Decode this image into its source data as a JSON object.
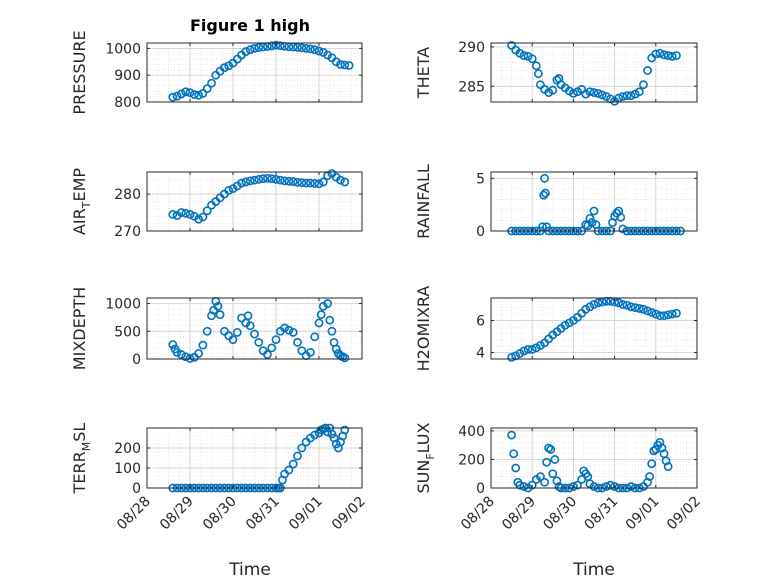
{
  "figure": {
    "title": "Figure 1 high",
    "xlabel": "Time",
    "xticks": [
      "08/28",
      "08/29",
      "08/30",
      "08/31",
      "09/01",
      "09/02"
    ],
    "marker_color": "#0072BD"
  },
  "chart_data": [
    {
      "type": "scatter",
      "ylabel": "PRESSURE",
      "ylim": [
        800,
        1020
      ],
      "yticks": [
        800,
        900,
        1000
      ],
      "grid": true,
      "x": [
        0.6,
        0.7,
        0.8,
        0.9,
        1.0,
        1.1,
        1.2,
        1.3,
        1.4,
        1.5,
        1.6,
        1.7,
        1.8,
        1.9,
        2.0,
        2.1,
        2.2,
        2.3,
        2.4,
        2.5,
        2.6,
        2.7,
        2.8,
        2.9,
        3.0,
        3.1,
        3.2,
        3.3,
        3.4,
        3.5,
        3.6,
        3.7,
        3.8,
        3.9,
        4.0,
        4.1,
        4.2,
        4.3,
        4.4,
        4.5,
        4.6,
        4.7
      ],
      "y": [
        818,
        822,
        830,
        838,
        835,
        828,
        825,
        832,
        850,
        870,
        900,
        915,
        928,
        935,
        945,
        960,
        975,
        988,
        995,
        1000,
        1003,
        1005,
        1007,
        1009,
        1012,
        1010,
        1008,
        1006,
        1005,
        1004,
        1002,
        1000,
        998,
        995,
        990,
        985,
        975,
        965,
        950,
        940,
        938,
        936
      ]
    },
    {
      "type": "scatter",
      "ylabel": "THETA",
      "ylim": [
        283,
        290.5
      ],
      "yticks": [
        285,
        290
      ],
      "grid": true,
      "x": [
        0.5,
        0.6,
        0.7,
        0.8,
        0.9,
        1.0,
        1.1,
        1.15,
        1.2,
        1.3,
        1.4,
        1.5,
        1.6,
        1.65,
        1.7,
        1.8,
        1.9,
        2.0,
        2.1,
        2.2,
        2.3,
        2.4,
        2.5,
        2.6,
        2.7,
        2.8,
        2.9,
        3.0,
        3.1,
        3.2,
        3.3,
        3.4,
        3.5,
        3.6,
        3.7,
        3.8,
        3.9,
        4.0,
        4.1,
        4.2,
        4.3,
        4.4,
        4.5
      ],
      "y": [
        290.2,
        289.6,
        289.2,
        288.9,
        288.8,
        288.5,
        287.6,
        286.6,
        285.2,
        284.6,
        284.2,
        284.5,
        285.8,
        286.0,
        285.2,
        284.8,
        284.4,
        284.1,
        284.3,
        284.6,
        284.0,
        284.3,
        284.2,
        284.1,
        283.9,
        283.7,
        283.4,
        283.1,
        283.5,
        283.7,
        283.8,
        283.8,
        284.0,
        284.3,
        285.2,
        287.0,
        288.6,
        289.1,
        289.2,
        289.0,
        288.9,
        288.8,
        288.9
      ]
    },
    {
      "type": "scatter",
      "ylabel": "AIR_TEMP",
      "ylim": [
        270,
        286
      ],
      "yticks": [
        270,
        280
      ],
      "grid": true,
      "x": [
        0.6,
        0.7,
        0.8,
        0.9,
        1.0,
        1.1,
        1.2,
        1.3,
        1.4,
        1.5,
        1.6,
        1.7,
        1.8,
        1.9,
        2.0,
        2.1,
        2.2,
        2.3,
        2.4,
        2.5,
        2.6,
        2.7,
        2.8,
        2.9,
        3.0,
        3.1,
        3.2,
        3.3,
        3.4,
        3.5,
        3.6,
        3.7,
        3.8,
        3.9,
        4.0,
        4.1,
        4.2,
        4.3,
        4.4,
        4.5,
        4.6
      ],
      "y": [
        274.5,
        274.2,
        275.0,
        274.8,
        274.5,
        274.0,
        273.2,
        273.8,
        275.5,
        277.0,
        278.0,
        279.0,
        280.0,
        281.0,
        281.5,
        282.2,
        283.0,
        283.3,
        283.6,
        283.8,
        284.0,
        284.2,
        284.3,
        284.2,
        284.0,
        283.8,
        283.6,
        283.5,
        283.4,
        283.2,
        283.1,
        283.0,
        283.0,
        282.9,
        282.8,
        283.3,
        285.0,
        285.6,
        284.6,
        283.8,
        283.3
      ]
    },
    {
      "type": "scatter",
      "ylabel": "RAINFALL",
      "ylim": [
        0,
        5.6
      ],
      "yticks": [
        0,
        5
      ],
      "grid": true,
      "x": [
        0.5,
        0.6,
        0.7,
        0.8,
        0.9,
        1.0,
        1.1,
        1.2,
        1.25,
        1.28,
        1.3,
        1.32,
        1.35,
        1.4,
        1.5,
        1.6,
        1.7,
        1.8,
        1.9,
        2.0,
        2.1,
        2.2,
        2.3,
        2.35,
        2.4,
        2.45,
        2.5,
        2.55,
        2.6,
        2.7,
        2.8,
        2.9,
        2.95,
        3.0,
        3.05,
        3.1,
        3.15,
        3.2,
        3.3,
        3.4,
        3.5,
        3.6,
        3.7,
        3.8,
        3.9,
        4.0,
        4.1,
        4.2,
        4.3,
        4.4,
        4.5,
        4.6
      ],
      "y": [
        0,
        0,
        0,
        0,
        0,
        0,
        0,
        0,
        0.4,
        3.4,
        5.0,
        3.6,
        0.4,
        0,
        0,
        0,
        0,
        0,
        0,
        0,
        0,
        0,
        0.6,
        0.5,
        1.2,
        0.8,
        1.9,
        0.6,
        0,
        0,
        0,
        0,
        0.8,
        1.4,
        1.7,
        1.9,
        1.3,
        0.2,
        0,
        0,
        0,
        0,
        0,
        0,
        0,
        0,
        0,
        0,
        0,
        0,
        0,
        0
      ]
    },
    {
      "type": "scatter",
      "ylabel": "MIXDEPTH",
      "ylim": [
        0,
        1100
      ],
      "yticks": [
        0,
        500,
        1000
      ],
      "grid": true,
      "x": [
        0.6,
        0.65,
        0.7,
        0.8,
        0.9,
        1.0,
        1.1,
        1.2,
        1.3,
        1.4,
        1.5,
        1.55,
        1.6,
        1.65,
        1.7,
        1.8,
        1.9,
        2.0,
        2.1,
        2.2,
        2.3,
        2.35,
        2.4,
        2.5,
        2.6,
        2.7,
        2.8,
        2.9,
        3.0,
        3.1,
        3.2,
        3.3,
        3.4,
        3.5,
        3.6,
        3.7,
        3.8,
        3.9,
        4.0,
        4.05,
        4.1,
        4.2,
        4.25,
        4.3,
        4.35,
        4.4,
        4.45,
        4.5,
        4.55,
        4.6
      ],
      "y": [
        260,
        180,
        120,
        80,
        40,
        10,
        30,
        100,
        250,
        500,
        780,
        880,
        1040,
        950,
        800,
        500,
        420,
        350,
        480,
        740,
        650,
        780,
        600,
        450,
        300,
        150,
        80,
        200,
        350,
        500,
        560,
        520,
        480,
        300,
        150,
        60,
        120,
        400,
        650,
        800,
        950,
        1000,
        700,
        500,
        300,
        180,
        100,
        60,
        40,
        20
      ]
    },
    {
      "type": "scatter",
      "ylabel": "H2OMIXRA",
      "ylim": [
        3.6,
        7.4
      ],
      "yticks": [
        4,
        6
      ],
      "grid": true,
      "x": [
        0.5,
        0.6,
        0.7,
        0.8,
        0.9,
        1.0,
        1.1,
        1.2,
        1.3,
        1.4,
        1.5,
        1.6,
        1.7,
        1.8,
        1.9,
        2.0,
        2.1,
        2.2,
        2.3,
        2.4,
        2.5,
        2.6,
        2.7,
        2.8,
        2.9,
        3.0,
        3.1,
        3.2,
        3.3,
        3.4,
        3.5,
        3.6,
        3.7,
        3.8,
        3.9,
        4.0,
        4.1,
        4.2,
        4.3,
        4.4,
        4.5
      ],
      "y": [
        3.7,
        3.8,
        3.95,
        4.1,
        4.2,
        4.2,
        4.3,
        4.45,
        4.6,
        4.85,
        5.1,
        5.3,
        5.5,
        5.7,
        5.85,
        6.0,
        6.2,
        6.45,
        6.7,
        6.85,
        7.0,
        7.1,
        7.15,
        7.2,
        7.2,
        7.15,
        7.1,
        7.0,
        6.95,
        6.85,
        6.8,
        6.75,
        6.7,
        6.6,
        6.5,
        6.4,
        6.3,
        6.3,
        6.35,
        6.4,
        6.45
      ]
    },
    {
      "type": "scatter",
      "ylabel": "TERR_MSL",
      "ylim": [
        0,
        300
      ],
      "yticks": [
        0,
        100,
        200
      ],
      "grid": true,
      "x": [
        0.6,
        0.7,
        0.8,
        0.9,
        1.0,
        1.1,
        1.2,
        1.3,
        1.4,
        1.5,
        1.6,
        1.7,
        1.8,
        1.9,
        2.0,
        2.1,
        2.2,
        2.3,
        2.4,
        2.5,
        2.6,
        2.7,
        2.8,
        2.9,
        3.0,
        3.05,
        3.1,
        3.15,
        3.2,
        3.3,
        3.4,
        3.5,
        3.6,
        3.7,
        3.8,
        3.9,
        4.0,
        4.05,
        4.1,
        4.15,
        4.2,
        4.25,
        4.3,
        4.35,
        4.4,
        4.45,
        4.5,
        4.55,
        4.6
      ],
      "y": [
        0,
        0,
        0,
        0,
        0,
        0,
        0,
        0,
        0,
        0,
        0,
        0,
        0,
        0,
        0,
        0,
        0,
        0,
        0,
        0,
        0,
        0,
        0,
        0,
        0,
        0,
        0,
        40,
        70,
        90,
        120,
        160,
        200,
        230,
        250,
        265,
        275,
        290,
        295,
        300,
        280,
        300,
        270,
        250,
        220,
        200,
        230,
        260,
        290
      ]
    },
    {
      "type": "scatter",
      "ylabel": "SUN_FLUX",
      "ylim": [
        0,
        420
      ],
      "yticks": [
        0,
        200,
        400
      ],
      "grid": true,
      "x": [
        0.5,
        0.55,
        0.6,
        0.65,
        0.7,
        0.8,
        0.9,
        1.0,
        1.1,
        1.2,
        1.3,
        1.35,
        1.4,
        1.45,
        1.5,
        1.55,
        1.6,
        1.65,
        1.7,
        1.8,
        1.9,
        2.0,
        2.1,
        2.2,
        2.25,
        2.3,
        2.35,
        2.4,
        2.5,
        2.6,
        2.7,
        2.8,
        2.9,
        3.0,
        3.1,
        3.2,
        3.3,
        3.4,
        3.5,
        3.6,
        3.7,
        3.8,
        3.85,
        3.9,
        3.95,
        4.0,
        4.05,
        4.1,
        4.15,
        4.2,
        4.25,
        4.3
      ],
      "y": [
        370,
        240,
        140,
        40,
        20,
        10,
        0,
        20,
        60,
        80,
        40,
        180,
        280,
        270,
        100,
        200,
        50,
        10,
        0,
        0,
        0,
        10,
        20,
        60,
        120,
        100,
        80,
        30,
        10,
        0,
        0,
        10,
        20,
        10,
        0,
        0,
        0,
        10,
        0,
        0,
        10,
        40,
        80,
        170,
        260,
        270,
        300,
        320,
        280,
        240,
        190,
        150
      ]
    }
  ]
}
